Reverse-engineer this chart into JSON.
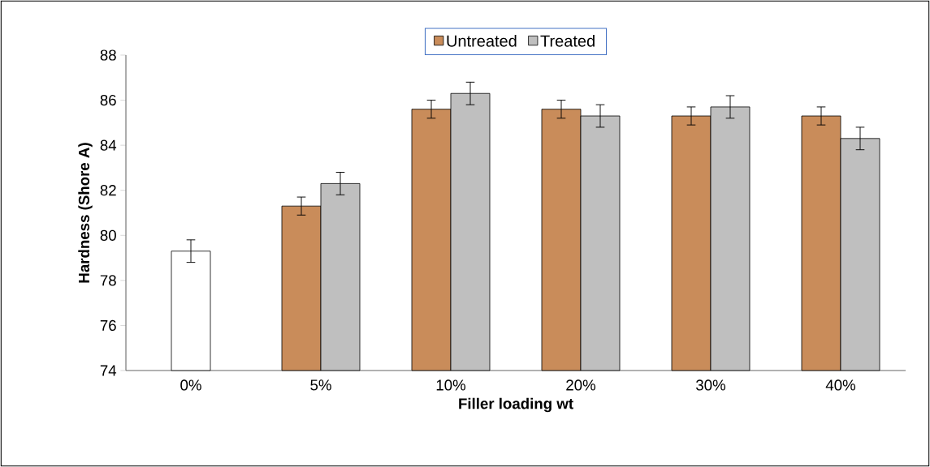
{
  "chart_data": {
    "type": "bar",
    "xlabel": "Filler loading wt",
    "ylabel": "Hardness (Shore A)",
    "categories": [
      "0%",
      "5%",
      "10%",
      "20%",
      "30%",
      "40%"
    ],
    "ylim": [
      74,
      88
    ],
    "yticks": [
      74,
      76,
      78,
      80,
      82,
      84,
      86,
      88
    ],
    "legend": "top",
    "series": [
      {
        "color": "#ffffff",
        "values": [
          79.3,
          null,
          null,
          null,
          null,
          null
        ],
        "errors": [
          0.5,
          null,
          null,
          null,
          null,
          null
        ]
      },
      {
        "name": "Untreated",
        "color": "#c98c5a",
        "values": [
          null,
          81.3,
          85.6,
          85.6,
          85.3,
          85.3
        ],
        "errors": [
          null,
          0.4,
          0.4,
          0.4,
          0.4,
          0.4
        ]
      },
      {
        "name": "Treated",
        "color": "#bfbfbf",
        "values": [
          null,
          82.3,
          86.3,
          85.3,
          85.7,
          84.3
        ],
        "errors": [
          null,
          0.5,
          0.5,
          0.5,
          0.5,
          0.5
        ]
      }
    ]
  }
}
